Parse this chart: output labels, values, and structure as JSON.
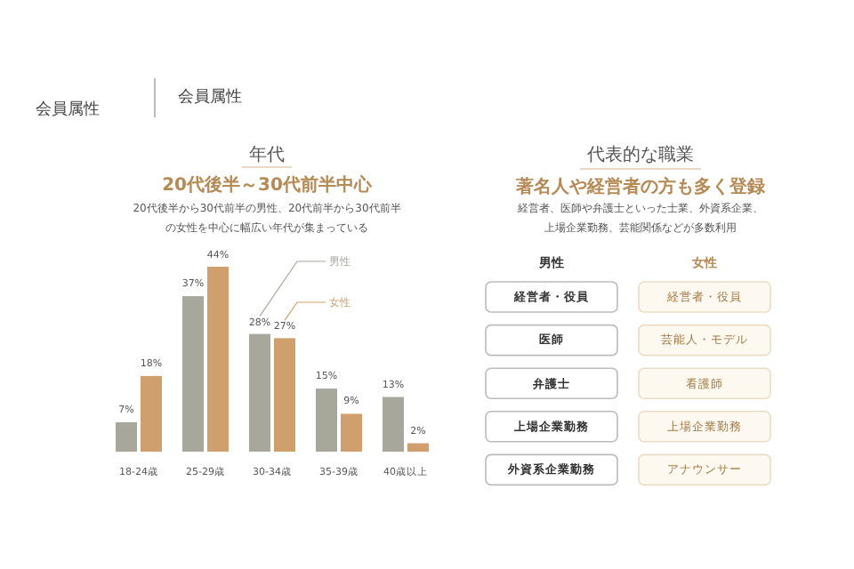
{
  "chart_data": [
    {
      "type": "bar",
      "title": "年代",
      "subtitle": "20代後半～30代前半中心",
      "annotations": [
        "会員属性",
        "会員属性",
        "20代後半から30代前半の男性、20代前半から30代前半の女性を中心に幅広い年代が集まっている"
      ],
      "categories": [
        "18-24歳",
        "25-29歳",
        "30-34歳",
        "35-39歳",
        "40歳以上"
      ],
      "series": [
        {
          "name": "男性",
          "color": "#a8a79c",
          "values": [
            7,
            37,
            28,
            15,
            13
          ],
          "value_labels": [
            "7%",
            "37%",
            "28%",
            "15%",
            "13%"
          ]
        },
        {
          "name": "女性",
          "color": "#cf9f6e",
          "values": [
            18,
            44,
            27,
            9,
            2
          ],
          "value_labels": [
            "18%",
            "44%",
            "27%",
            "9%",
            "2%"
          ]
        }
      ],
      "legend": "top right"
    },
    {
      "type": "other",
      "title": "代表的な職業",
      "subtitle": "著名人や経営者の方も多く登録",
      "annotations": [
        "経営者、医師や弁護士といった士業、外資系企業、上場企業勤務、芸能関係などが多数利用",
        "男性",
        "女性",
        "経営者・役員",
        "経営者・役員",
        "医師",
        "芸能人・モデル",
        "弁護士",
        "看護師",
        "上場企業勤務",
        "上場企業勤務",
        "外資系企業勤務",
        "アナウンサー"
      ]
    }
  ]
}
